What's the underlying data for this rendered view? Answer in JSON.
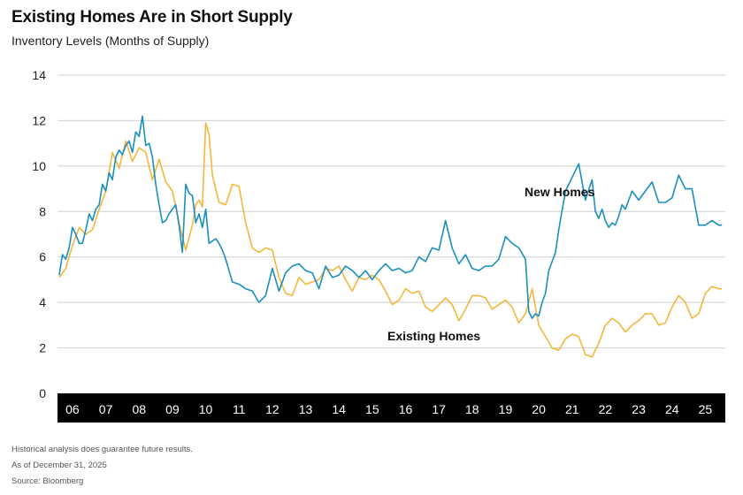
{
  "header": {
    "title": "Existing Homes Are in Short Supply",
    "subtitle": "Inventory Levels (Months of Supply)"
  },
  "notes": [
    "Historical analysis does guarantee future results.",
    "As of December 31, 2025",
    "Source: Bloomberg"
  ],
  "colors": {
    "new_homes": "#1a8fbf",
    "existing_homes": "#f4b63c",
    "axis_band": "#000000",
    "grid": "#cfcfcf"
  },
  "chart_data": {
    "type": "line",
    "title": "Existing Homes Are in Short Supply",
    "subtitle": "Inventory Levels (Months of Supply)",
    "xlabel": "",
    "ylabel": "",
    "xlim": [
      2005.95,
      2026.0
    ],
    "ylim": [
      0,
      14
    ],
    "yticks": [
      0,
      2,
      4,
      6,
      8,
      10,
      12,
      14
    ],
    "xtick_labels": [
      "06",
      "07",
      "08",
      "09",
      "10",
      "11",
      "12",
      "13",
      "14",
      "15",
      "16",
      "17",
      "18",
      "19",
      "20",
      "21",
      "22",
      "23",
      "24",
      "25"
    ],
    "xtick_values": [
      2006.4,
      2007.4,
      2008.4,
      2009.4,
      2010.4,
      2011.4,
      2012.4,
      2013.4,
      2014.4,
      2015.4,
      2016.4,
      2017.4,
      2018.4,
      2019.4,
      2020.4,
      2021.4,
      2022.4,
      2023.4,
      2024.4,
      2025.4
    ],
    "grid": "horizontal",
    "series": [
      {
        "name": "New Homes",
        "x": [
          2006.0,
          2006.1,
          2006.2,
          2006.3,
          2006.4,
          2006.5,
          2006.6,
          2006.7,
          2006.8,
          2006.9,
          2007.0,
          2007.1,
          2007.2,
          2007.3,
          2007.4,
          2007.5,
          2007.6,
          2007.7,
          2007.8,
          2007.9,
          2008.0,
          2008.1,
          2008.2,
          2008.3,
          2008.4,
          2008.5,
          2008.6,
          2008.7,
          2008.8,
          2008.9,
          2009.0,
          2009.1,
          2009.2,
          2009.3,
          2009.4,
          2009.5,
          2009.6,
          2009.7,
          2009.8,
          2009.9,
          2010.0,
          2010.1,
          2010.2,
          2010.3,
          2010.4,
          2010.5,
          2010.6,
          2010.7,
          2010.8,
          2010.9,
          2011.0,
          2011.2,
          2011.4,
          2011.6,
          2011.8,
          2012.0,
          2012.2,
          2012.4,
          2012.6,
          2012.8,
          2013.0,
          2013.2,
          2013.4,
          2013.6,
          2013.8,
          2014.0,
          2014.2,
          2014.4,
          2014.6,
          2014.8,
          2015.0,
          2015.2,
          2015.4,
          2015.6,
          2015.8,
          2016.0,
          2016.2,
          2016.4,
          2016.6,
          2016.8,
          2017.0,
          2017.2,
          2017.4,
          2017.6,
          2017.8,
          2018.0,
          2018.2,
          2018.4,
          2018.6,
          2018.8,
          2019.0,
          2019.2,
          2019.4,
          2019.6,
          2019.8,
          2020.0,
          2020.1,
          2020.2,
          2020.3,
          2020.4,
          2020.5,
          2020.6,
          2020.7,
          2020.8,
          2020.9,
          2021.0,
          2021.2,
          2021.4,
          2021.6,
          2021.8,
          2022.0,
          2022.1,
          2022.2,
          2022.3,
          2022.4,
          2022.5,
          2022.6,
          2022.7,
          2022.8,
          2022.9,
          2023.0,
          2023.2,
          2023.4,
          2023.6,
          2023.8,
          2024.0,
          2024.2,
          2024.4,
          2024.6,
          2024.8,
          2025.0,
          2025.2,
          2025.3,
          2025.4,
          2025.5,
          2025.6,
          2025.7,
          2025.8,
          2025.9
        ],
        "values": [
          5.2,
          6.1,
          5.9,
          6.4,
          7.3,
          7.0,
          6.6,
          6.6,
          7.2,
          7.9,
          7.6,
          8.1,
          8.3,
          9.2,
          8.9,
          9.7,
          9.4,
          10.4,
          10.7,
          10.5,
          10.9,
          11.1,
          10.6,
          11.5,
          11.3,
          12.2,
          10.9,
          11.0,
          10.4,
          9.2,
          8.3,
          7.5,
          7.6,
          7.9,
          8.1,
          8.3,
          7.4,
          6.2,
          9.2,
          8.8,
          8.7,
          7.5,
          7.9,
          7.3,
          8.1,
          6.6,
          6.7,
          6.8,
          6.6,
          6.3,
          5.9,
          4.9,
          4.8,
          4.6,
          4.5,
          4.0,
          4.3,
          5.5,
          4.5,
          5.3,
          5.6,
          5.7,
          5.4,
          5.3,
          4.6,
          5.6,
          5.1,
          5.2,
          5.6,
          5.4,
          5.1,
          5.4,
          5.0,
          5.4,
          5.7,
          5.4,
          5.5,
          5.3,
          5.4,
          6.0,
          5.8,
          6.4,
          6.3,
          7.6,
          6.4,
          5.7,
          6.1,
          5.5,
          5.4,
          5.6,
          5.6,
          5.9,
          6.9,
          6.6,
          6.4,
          5.9,
          3.6,
          3.3,
          3.5,
          3.4,
          4.0,
          4.4,
          5.4,
          5.8,
          6.2,
          7.2,
          8.9,
          9.5,
          10.1,
          8.5,
          9.4,
          8.0,
          7.7,
          8.1,
          7.6,
          7.3,
          7.5,
          7.4,
          7.8,
          8.3,
          8.1,
          8.9,
          8.5,
          8.9,
          9.3,
          8.4,
          8.4,
          8.6,
          9.6,
          9.0,
          9.0,
          7.4,
          7.4,
          7.4,
          7.5,
          7.6,
          7.5,
          7.4,
          7.4
        ],
        "label": "New Homes"
      },
      {
        "name": "Existing Homes",
        "x": [
          2006.0,
          2006.2,
          2006.4,
          2006.6,
          2006.8,
          2007.0,
          2007.2,
          2007.4,
          2007.6,
          2007.8,
          2008.0,
          2008.2,
          2008.4,
          2008.6,
          2008.8,
          2009.0,
          2009.2,
          2009.4,
          2009.6,
          2009.8,
          2010.0,
          2010.1,
          2010.2,
          2010.3,
          2010.4,
          2010.5,
          2010.6,
          2010.8,
          2011.0,
          2011.2,
          2011.4,
          2011.6,
          2011.8,
          2012.0,
          2012.2,
          2012.4,
          2012.6,
          2012.8,
          2013.0,
          2013.2,
          2013.4,
          2013.6,
          2013.8,
          2014.0,
          2014.2,
          2014.4,
          2014.6,
          2014.8,
          2015.0,
          2015.2,
          2015.4,
          2015.6,
          2015.8,
          2016.0,
          2016.2,
          2016.4,
          2016.6,
          2016.8,
          2017.0,
          2017.2,
          2017.4,
          2017.6,
          2017.8,
          2018.0,
          2018.2,
          2018.4,
          2018.6,
          2018.8,
          2019.0,
          2019.2,
          2019.4,
          2019.6,
          2019.8,
          2020.0,
          2020.2,
          2020.4,
          2020.6,
          2020.8,
          2021.0,
          2021.2,
          2021.4,
          2021.6,
          2021.8,
          2022.0,
          2022.2,
          2022.4,
          2022.6,
          2022.8,
          2023.0,
          2023.2,
          2023.4,
          2023.6,
          2023.8,
          2024.0,
          2024.2,
          2024.4,
          2024.6,
          2024.8,
          2025.0,
          2025.2,
          2025.4,
          2025.6,
          2025.8,
          2025.9
        ],
        "values": [
          5.1,
          5.5,
          6.5,
          7.3,
          7.0,
          7.2,
          8.1,
          8.9,
          10.6,
          9.9,
          11.1,
          10.2,
          10.8,
          10.6,
          9.4,
          10.3,
          9.3,
          8.9,
          7.5,
          6.3,
          7.4,
          8.3,
          8.5,
          8.2,
          11.9,
          11.4,
          9.6,
          8.4,
          8.3,
          9.2,
          9.1,
          7.5,
          6.4,
          6.2,
          6.4,
          6.3,
          5.1,
          4.4,
          4.3,
          5.1,
          4.8,
          4.9,
          5.0,
          5.5,
          5.4,
          5.6,
          5.0,
          4.5,
          5.1,
          5.0,
          5.2,
          5.0,
          4.5,
          3.9,
          4.1,
          4.6,
          4.4,
          4.5,
          3.8,
          3.6,
          3.9,
          4.2,
          3.9,
          3.2,
          3.7,
          4.3,
          4.3,
          4.2,
          3.7,
          3.9,
          4.1,
          3.8,
          3.1,
          3.5,
          4.6,
          3.0,
          2.5,
          2.0,
          1.9,
          2.4,
          2.6,
          2.5,
          1.7,
          1.6,
          2.2,
          3.0,
          3.3,
          3.1,
          2.7,
          3.0,
          3.2,
          3.5,
          3.5,
          3.0,
          3.1,
          3.8,
          4.3,
          4.0,
          3.3,
          3.5,
          4.4,
          4.7,
          4.6,
          4.6
        ],
        "label": "Existing Homes"
      }
    ]
  }
}
